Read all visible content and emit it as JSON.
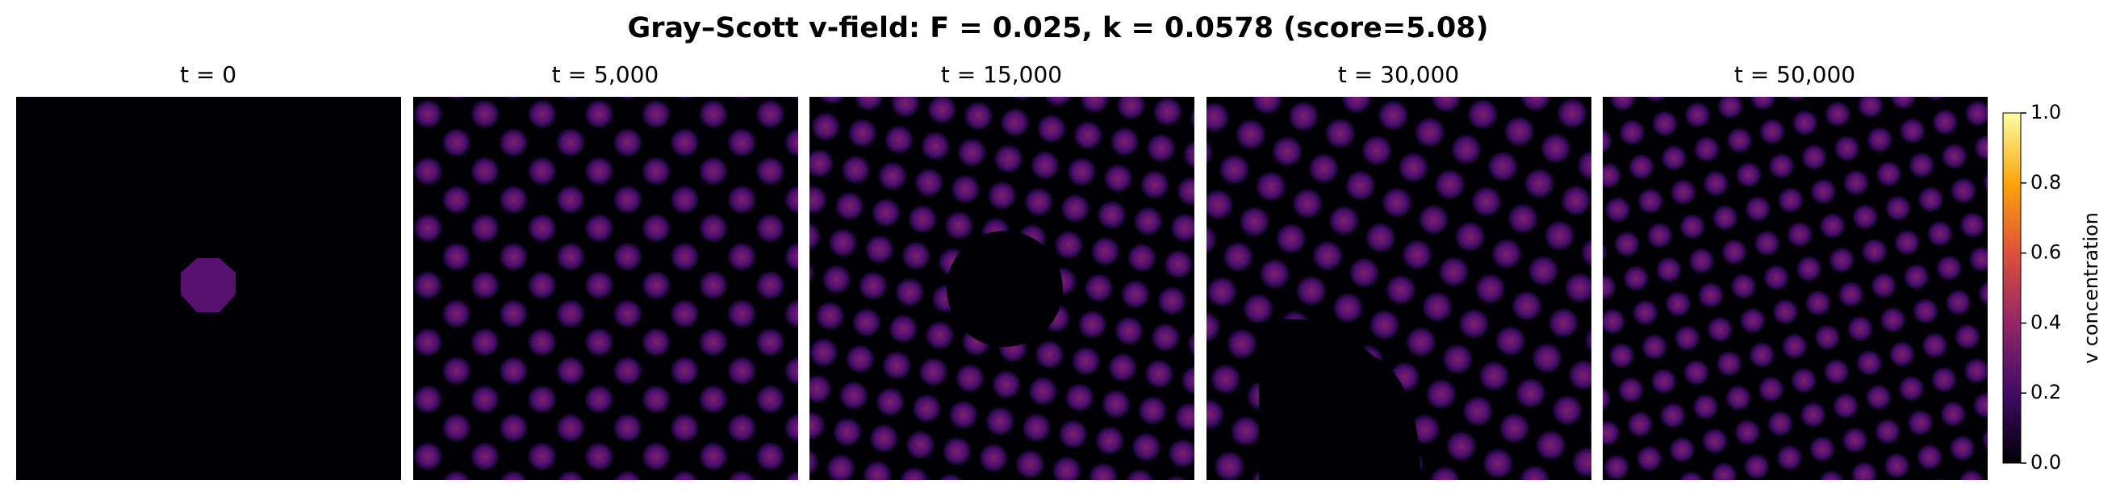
{
  "chart_data": {
    "type": "heatmap",
    "title": "Gray–Scott v-field: F = 0.025, k = 0.0578 (score=5.08)",
    "panels": [
      {
        "title": "t = 0"
      },
      {
        "title": "t = 5,000"
      },
      {
        "title": "t = 15,000"
      },
      {
        "title": "t = 30,000"
      },
      {
        "title": "t = 50,000"
      }
    ],
    "colorbar": {
      "label": "v concentration",
      "colormap": "inferno",
      "colors": [
        "#000004",
        "#420a68",
        "#932667",
        "#dd513a",
        "#fca50a",
        "#fcffa4"
      ],
      "ylim": [
        0,
        1
      ],
      "yticks": [
        {
          "value": 0,
          "label": "0.0"
        },
        {
          "value": 0.2,
          "label": "0.2"
        },
        {
          "value": 0.4,
          "label": "0.4"
        },
        {
          "value": 0.6,
          "label": "0.6"
        },
        {
          "value": 0.8,
          "label": "0.8"
        },
        {
          "value": 1,
          "label": "1.0"
        }
      ]
    }
  }
}
